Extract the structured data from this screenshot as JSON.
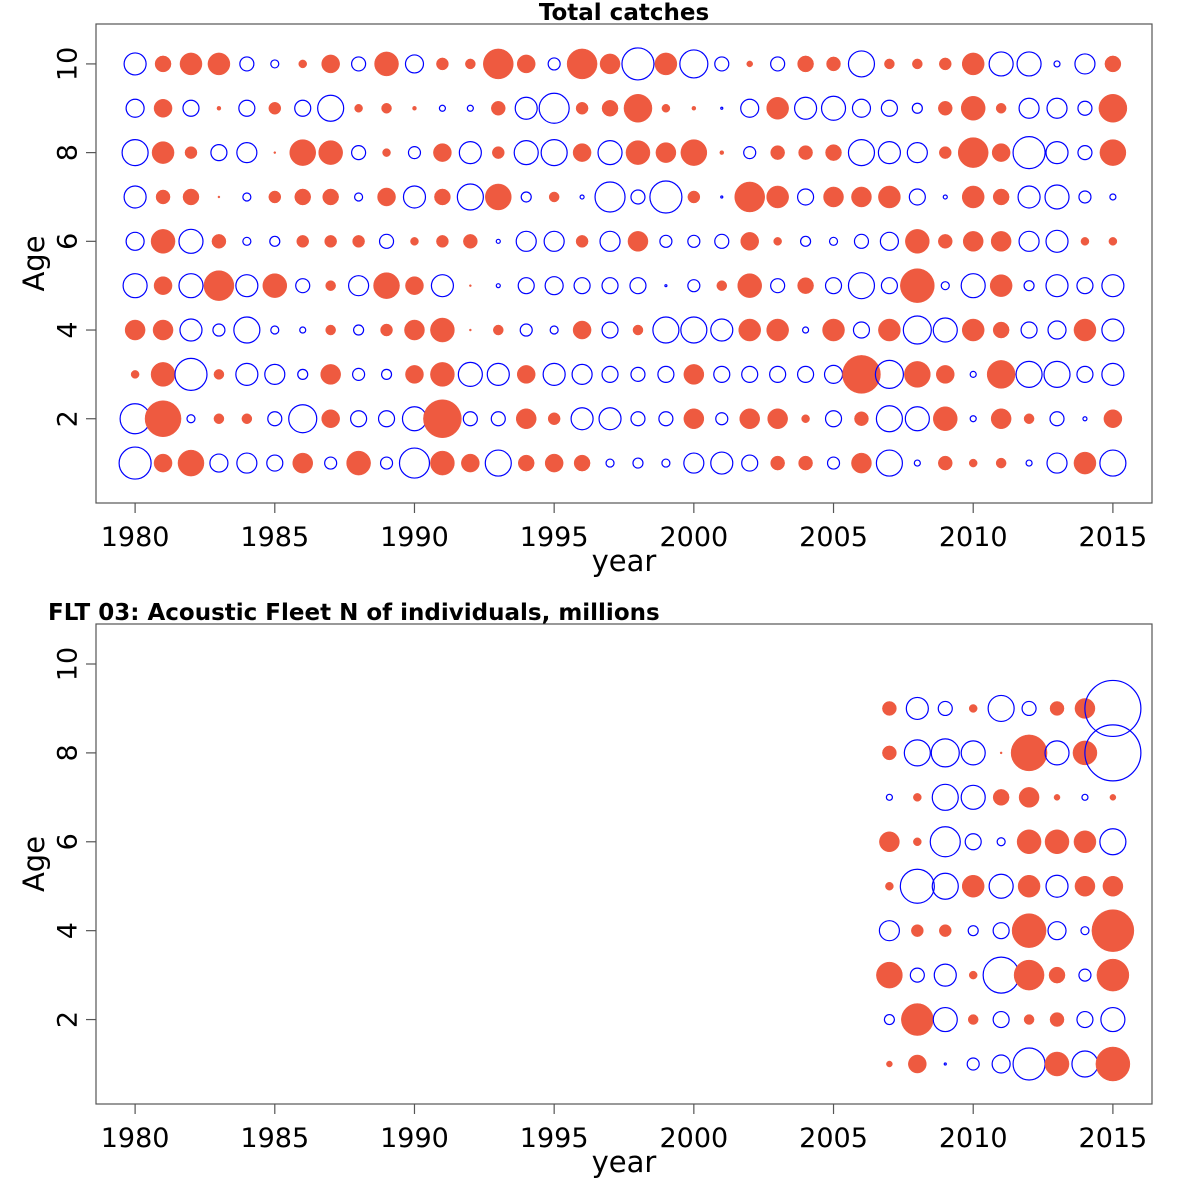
{
  "chart_data": [
    {
      "type": "bubble",
      "title": "Total catches",
      "xlabel": "year",
      "ylabel": "Age",
      "xlim": [
        1978.6,
        2016.4
      ],
      "ylim": [
        0.1,
        10.9
      ],
      "x_ticks": [
        1980,
        1985,
        1990,
        1995,
        2000,
        2005,
        2010,
        2015
      ],
      "y_ticks": [
        2,
        4,
        6,
        8,
        10
      ],
      "colors": {
        "positive": "#EE5A40",
        "negative": "#0000FF"
      },
      "encoding": "value = signed residual; positive = filled red circle, negative = open blue circle; radius proportional to |value|",
      "years": [
        1980,
        1981,
        1982,
        1983,
        1984,
        1985,
        1986,
        1987,
        1988,
        1989,
        1990,
        1991,
        1992,
        1993,
        1994,
        1995,
        1996,
        1997,
        1998,
        1999,
        2000,
        2001,
        2002,
        2003,
        2004,
        2005,
        2006,
        2007,
        2008,
        2009,
        2010,
        2011,
        2012,
        2013,
        2014,
        2015
      ],
      "ages": [
        1,
        2,
        3,
        4,
        5,
        6,
        7,
        8,
        9,
        10
      ],
      "values": {
        "10": [
          -11,
          8,
          11,
          11,
          -7,
          -4,
          4,
          9,
          -7,
          12,
          -9,
          6,
          5,
          15,
          9,
          -6,
          15,
          10,
          -16,
          11,
          -14,
          -7,
          3,
          -7,
          8,
          7,
          -13,
          5,
          5,
          6,
          11,
          -12,
          -12,
          -3,
          -10,
          8
        ],
        "9": [
          -9,
          9,
          -8,
          2,
          -8,
          6,
          -8,
          -13,
          4,
          5,
          2,
          -3,
          -3,
          7,
          -11,
          -15,
          6,
          8,
          14,
          4,
          2,
          -1,
          -9,
          11,
          -11,
          -12,
          -9,
          -8,
          -5,
          7,
          12,
          5,
          -10,
          -10,
          -7,
          14
        ],
        "8": [
          -13,
          11,
          6,
          -8,
          -10,
          1,
          13,
          12,
          -7,
          4,
          -6,
          9,
          -11,
          6,
          -12,
          -13,
          9,
          -12,
          12,
          10,
          13,
          2,
          -6,
          7,
          7,
          8,
          -13,
          -11,
          -10,
          6,
          15,
          9,
          -16,
          -11,
          -7,
          13
        ],
        "7": [
          -11,
          7,
          8,
          1,
          -4,
          6,
          8,
          8,
          -4,
          9,
          -11,
          8,
          -13,
          13,
          -5,
          5,
          -2,
          -15,
          -7,
          -16,
          6,
          -1,
          15,
          11,
          -8,
          10,
          10,
          11,
          -8,
          -2,
          11,
          8,
          -11,
          -12,
          -6,
          -3
        ],
        "6": [
          -9,
          12,
          -12,
          7,
          -4,
          -5,
          6,
          6,
          6,
          -7,
          4,
          6,
          7,
          -2,
          -10,
          -10,
          6,
          -10,
          10,
          -6,
          -6,
          -7,
          9,
          4,
          -5,
          -4,
          -7,
          -9,
          12,
          7,
          10,
          10,
          -10,
          -11,
          4,
          4
        ],
        "5": [
          -12,
          9,
          -12,
          15,
          -11,
          12,
          -7,
          5,
          -10,
          13,
          9,
          -11,
          1,
          -2,
          -8,
          -9,
          -8,
          -8,
          -8,
          -1,
          -6,
          5,
          12,
          -7,
          8,
          -8,
          -13,
          -8,
          17,
          -4,
          -12,
          11,
          -5,
          -11,
          -8,
          -11
        ],
        "4": [
          10,
          10,
          -11,
          -6,
          -13,
          -4,
          -3,
          5,
          -5,
          6,
          10,
          12,
          1,
          5,
          -6,
          -4,
          9,
          -8,
          5,
          -13,
          -13,
          -11,
          11,
          11,
          -3,
          11,
          -8,
          11,
          -14,
          -12,
          11,
          8,
          -8,
          -9,
          11,
          -11
        ],
        "3": [
          4,
          12,
          -16,
          5,
          -11,
          -10,
          -5,
          10,
          -6,
          -5,
          9,
          12,
          -12,
          -11,
          9,
          -11,
          -10,
          -8,
          -7,
          -8,
          10,
          -8,
          -8,
          -8,
          -8,
          -9,
          19,
          -14,
          13,
          9,
          -3,
          14,
          -13,
          -13,
          -8,
          -11
        ],
        "2": [
          -15,
          18,
          -4,
          5,
          5,
          -7,
          -14,
          9,
          -8,
          -8,
          -12,
          19,
          -7,
          -7,
          10,
          6,
          -11,
          -11,
          -7,
          -7,
          10,
          -6,
          10,
          10,
          4,
          -8,
          7,
          -13,
          -12,
          12,
          -3,
          10,
          5,
          -7,
          -2,
          9
        ],
        "1": [
          -16,
          9,
          13,
          -9,
          -10,
          -8,
          10,
          -6,
          12,
          -6,
          -15,
          12,
          9,
          -13,
          8,
          9,
          8,
          -4,
          -5,
          -4,
          -10,
          -11,
          -8,
          7,
          7,
          -6,
          10,
          -13,
          -3,
          7,
          4,
          5,
          -3,
          -10,
          11,
          -13
        ]
      }
    },
    {
      "type": "bubble",
      "title": "FLT 03: Acoustic Fleet   N of individuals, millions",
      "xlabel": "year",
      "ylabel": "Age",
      "xlim": [
        1978.6,
        2016.4
      ],
      "ylim": [
        0.1,
        10.9
      ],
      "x_ticks": [
        1980,
        1985,
        1990,
        1995,
        2000,
        2005,
        2010,
        2015
      ],
      "y_ticks": [
        2,
        4,
        6,
        8,
        10
      ],
      "colors": {
        "positive": "#EE5A40",
        "negative": "#0000FF"
      },
      "encoding": "value = signed residual; positive = filled red circle, negative = open blue circle; radius proportional to |value|",
      "years": [
        2007,
        2008,
        2009,
        2010,
        2011,
        2012,
        2013,
        2014,
        2015
      ],
      "ages": [
        1,
        2,
        3,
        4,
        5,
        6,
        7,
        8,
        9
      ],
      "values": {
        "9": [
          7,
          -11,
          -7,
          4,
          -13,
          -7,
          7,
          10,
          -28
        ],
        "8": [
          7,
          -13,
          -14,
          -12,
          1,
          18,
          -12,
          12,
          -28
        ],
        "7": [
          -3,
          4,
          -13,
          -12,
          8,
          10,
          3,
          -3,
          3
        ],
        "6": [
          10,
          4,
          -15,
          -8,
          -4,
          12,
          12,
          11,
          -13
        ],
        "5": [
          4,
          -17,
          -13,
          11,
          -12,
          11,
          -11,
          10,
          10
        ],
        "4": [
          -10,
          6,
          6,
          -5,
          -8,
          17,
          -9,
          -4,
          21
        ],
        "3": [
          13,
          -7,
          -11,
          4,
          -18,
          15,
          8,
          -6,
          16
        ],
        "2": [
          -5,
          16,
          -12,
          5,
          -8,
          5,
          7,
          -8,
          -12
        ],
        "1": [
          3,
          9,
          -1,
          -6,
          -9,
          -16,
          12,
          -13,
          17
        ]
      }
    }
  ]
}
